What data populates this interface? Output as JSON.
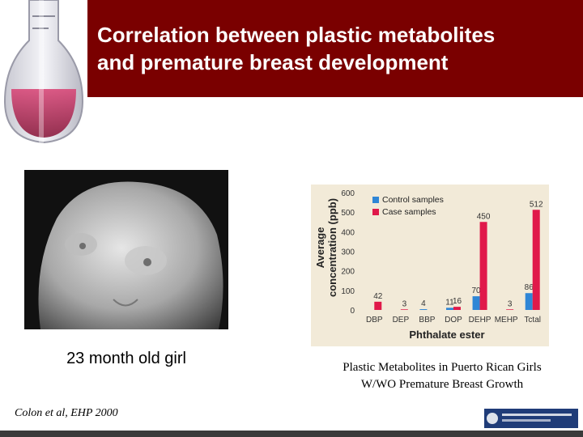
{
  "slide": {
    "title_line1": "Correlation between plastic metabolites",
    "title_line2": "and premature breast development",
    "photo_caption": "23 month old girl",
    "citation": "Colon et al, EHP 2000",
    "chart_caption_line1": "Plastic Metabolites in Puerto Rican Girls",
    "chart_caption_line2": "W/WO  Premature Breast Growth"
  },
  "colors": {
    "header": "#7a0000",
    "control": "#2f86d6",
    "case": "#e0194a",
    "chart_bg": "#f2ead8"
  },
  "chart_data": {
    "type": "bar",
    "categories": [
      "DBP",
      "DEP",
      "BBP",
      "DOP",
      "DEHP",
      "MEHP",
      "Total"
    ],
    "category_labels": [
      "DBP",
      "DEP",
      "BBP",
      "DOP",
      "DEHP",
      "MEHP",
      "Tctal"
    ],
    "series": [
      {
        "name": "Control samples",
        "values": [
          0,
          0,
          4,
          11,
          70,
          0,
          86
        ],
        "labels": [
          "",
          "",
          "4",
          "11",
          "70",
          "",
          "86"
        ]
      },
      {
        "name": "Case samples",
        "values": [
          42,
          3,
          0,
          16,
          450,
          3,
          512
        ],
        "labels": [
          "42",
          "3",
          "",
          "16",
          "450",
          "3",
          "512"
        ]
      }
    ],
    "xlabel": "Phthalate ester",
    "ylabel_line1": "Average",
    "ylabel_line2": "concentration (ppb)",
    "ylim": [
      0,
      600
    ],
    "yticks": [
      0,
      100,
      200,
      300,
      400,
      500,
      600
    ],
    "grid": false,
    "legend": "top-left"
  }
}
